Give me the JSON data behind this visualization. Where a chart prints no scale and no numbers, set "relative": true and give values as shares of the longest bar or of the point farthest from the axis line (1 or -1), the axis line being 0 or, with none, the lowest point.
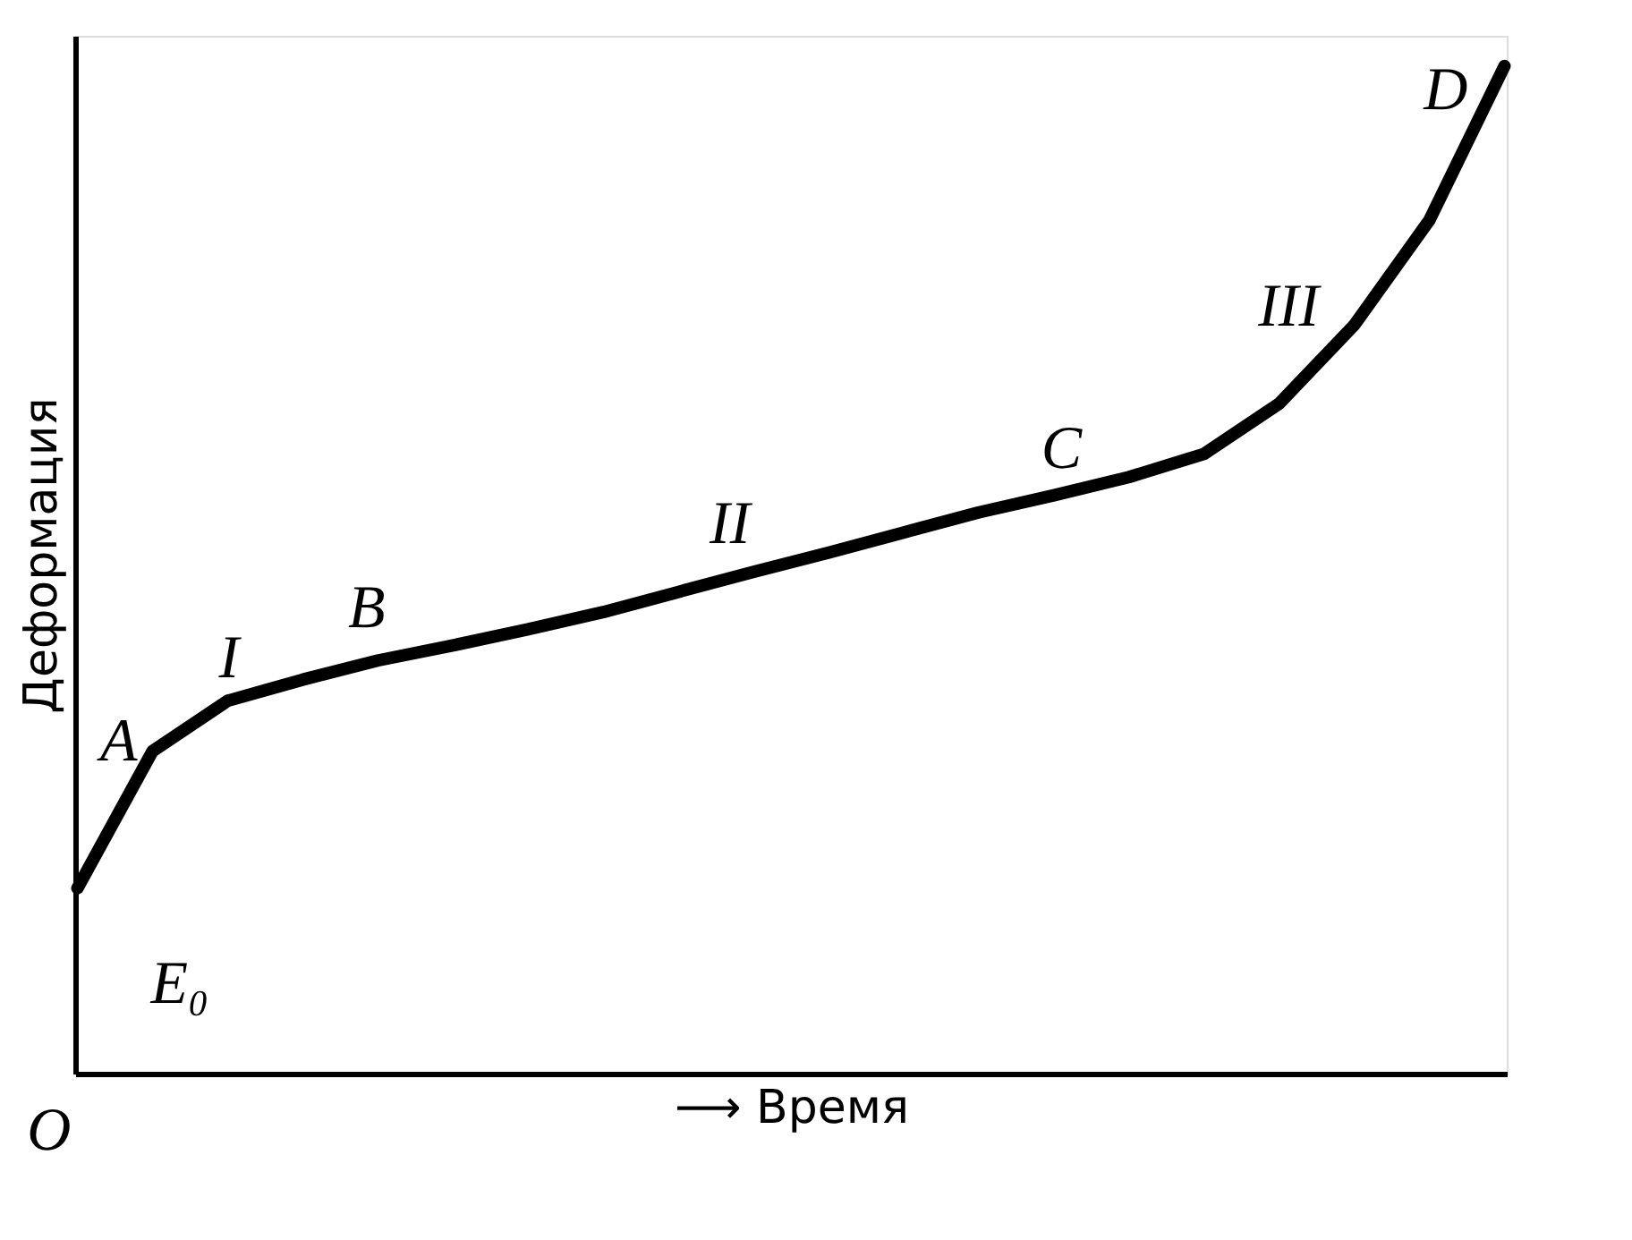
{
  "chart_data": {
    "type": "line",
    "relative": true,
    "xlabel": "⟶ Время",
    "ylabel": "Деформация",
    "grid": false,
    "line_style": "solid",
    "categories": [
      null,
      null,
      null,
      null,
      null,
      null,
      null,
      null,
      null,
      null,
      null,
      null,
      null,
      null,
      null,
      null,
      null,
      null,
      null,
      null
    ],
    "series": [
      {
        "color": "#000000",
        "values": [
          0.184,
          0.32,
          0.37,
          0.391,
          0.41,
          0.425,
          0.441,
          0.458,
          0.478,
          0.498,
          0.517,
          0.537,
          0.557,
          0.574,
          0.592,
          0.615,
          0.665,
          0.743,
          0.847,
          1.0
        ]
      }
    ],
    "annotations": [
      "A",
      "I",
      "B",
      "II",
      "C",
      "III",
      "D",
      "E₀",
      "O"
    ]
  }
}
